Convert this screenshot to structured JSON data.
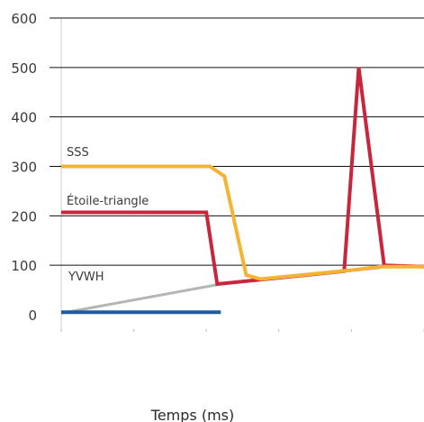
{
  "chart_data": {
    "type": "line",
    "title": "",
    "xlabel": "Temps (ms)",
    "ylabel": "",
    "ylim": [
      0,
      600
    ],
    "xlim": [
      0,
      100
    ],
    "yticks": [
      0,
      100,
      200,
      300,
      400,
      500,
      600
    ],
    "grid": true,
    "colors": {
      "SSS": "#f5b335",
      "Étoile-triangle": "#c8263d",
      "YVWH": "#1f5b9e",
      "gray_ramp": "#b5b5b5"
    },
    "series": [
      {
        "name": "SSS",
        "color": "#f5b335",
        "points": [
          [
            0,
            300
          ],
          [
            41,
            300
          ],
          [
            45,
            280
          ],
          [
            51,
            80
          ],
          [
            55,
            72
          ],
          [
            80,
            90
          ],
          [
            88,
            97
          ],
          [
            100,
            97
          ]
        ]
      },
      {
        "name": "Étoile-triangle",
        "color": "#c8263d",
        "points": [
          [
            0,
            207
          ],
          [
            40,
            207
          ],
          [
            43,
            62
          ],
          [
            78,
            88
          ],
          [
            82,
            500
          ],
          [
            89,
            100
          ],
          [
            100,
            97
          ]
        ]
      },
      {
        "name": "YVWH",
        "color": "#1f5b9e",
        "points": [
          [
            0,
            5
          ],
          [
            44,
            5
          ]
        ]
      },
      {
        "name": "",
        "color": "#b5b5b5",
        "points": [
          [
            0,
            3
          ],
          [
            44,
            62
          ],
          [
            88,
            95
          ]
        ]
      }
    ]
  }
}
